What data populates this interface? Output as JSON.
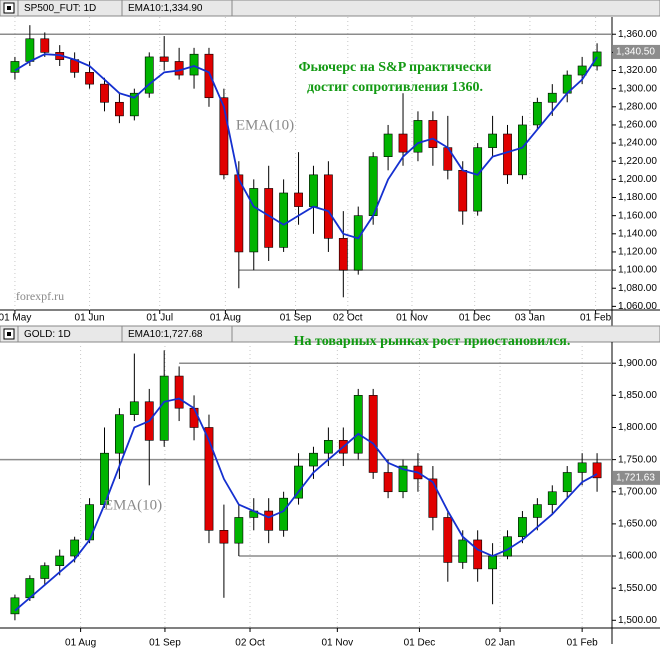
{
  "chart_data": [
    {
      "type": "candlestick",
      "title": "SP500_FUT: 1D",
      "subtitle": "EMA10:1,334.90",
      "annotations": [
        "Фьючерс на S&P практически",
        "достиг сопротивления 1360.",
        "EMA(10)",
        "forexpf.ru"
      ],
      "x": [
        1,
        2,
        3,
        4,
        5,
        6,
        7,
        8,
        9,
        10,
        11,
        12,
        13,
        14,
        15,
        16,
        17,
        18,
        19,
        20,
        21,
        22,
        23,
        24,
        25,
        26,
        27,
        28,
        29,
        30,
        31,
        32,
        33,
        34,
        35,
        36,
        37,
        38,
        39,
        40
      ],
      "open": [
        1318,
        1330,
        1355,
        1340,
        1332,
        1318,
        1305,
        1285,
        1270,
        1295,
        1335,
        1330,
        1315,
        1338,
        1290,
        1205,
        1120,
        1190,
        1125,
        1185,
        1170,
        1205,
        1135,
        1100,
        1160,
        1225,
        1250,
        1230,
        1265,
        1235,
        1210,
        1165,
        1235,
        1250,
        1205,
        1260,
        1285,
        1295,
        1315,
        1325
      ],
      "high": [
        1335,
        1370,
        1362,
        1348,
        1340,
        1330,
        1312,
        1295,
        1300,
        1340,
        1358,
        1345,
        1345,
        1345,
        1300,
        1220,
        1200,
        1215,
        1200,
        1230,
        1215,
        1220,
        1165,
        1170,
        1230,
        1260,
        1295,
        1275,
        1275,
        1270,
        1220,
        1240,
        1270,
        1260,
        1270,
        1290,
        1305,
        1320,
        1335,
        1350
      ],
      "low": [
        1310,
        1325,
        1335,
        1325,
        1312,
        1300,
        1275,
        1262,
        1265,
        1290,
        1320,
        1310,
        1300,
        1280,
        1200,
        1080,
        1100,
        1110,
        1120,
        1150,
        1140,
        1120,
        1070,
        1095,
        1150,
        1210,
        1215,
        1220,
        1215,
        1200,
        1150,
        1160,
        1225,
        1195,
        1200,
        1255,
        1270,
        1285,
        1305,
        1320
      ],
      "close": [
        1330,
        1355,
        1340,
        1332,
        1318,
        1305,
        1285,
        1270,
        1295,
        1335,
        1330,
        1315,
        1338,
        1290,
        1205,
        1120,
        1190,
        1125,
        1185,
        1170,
        1205,
        1135,
        1100,
        1160,
        1225,
        1250,
        1230,
        1265,
        1235,
        1210,
        1165,
        1235,
        1250,
        1205,
        1260,
        1285,
        1295,
        1315,
        1325,
        1340.5
      ],
      "ema": [
        1320,
        1330,
        1338,
        1337,
        1332,
        1325,
        1310,
        1295,
        1290,
        1305,
        1318,
        1320,
        1325,
        1318,
        1280,
        1200,
        1170,
        1160,
        1150,
        1160,
        1170,
        1165,
        1140,
        1135,
        1160,
        1200,
        1225,
        1240,
        1245,
        1235,
        1210,
        1205,
        1225,
        1230,
        1235,
        1255,
        1275,
        1295,
        1310,
        1334.9
      ],
      "up_color": "#00b400",
      "down_color": "#e00000",
      "ema_color": "#1530d0",
      "level_color": "#8c8c8c",
      "levels": [
        {
          "value": 1360,
          "x": [
            0,
            41
          ]
        },
        {
          "value": 1100,
          "x": [
            16,
            41
          ]
        }
      ],
      "last_price": {
        "value": 1340.5,
        "label": "1,340.50"
      },
      "xlim": [
        0,
        41
      ],
      "xticks": [
        {
          "value": 1.0,
          "label": "01 May"
        },
        {
          "value": 6.0,
          "label": "01 Jun"
        },
        {
          "value": 10.7,
          "label": "01 Jul"
        },
        {
          "value": 15.1,
          "label": "01 Aug"
        },
        {
          "value": 19.8,
          "label": "01 Sep"
        },
        {
          "value": 23.3,
          "label": "02 Oct"
        },
        {
          "value": 27.6,
          "label": "01 Nov"
        },
        {
          "value": 31.8,
          "label": "01 Dec"
        },
        {
          "value": 35.5,
          "label": "03 Jan"
        },
        {
          "value": 39.9,
          "label": "01 Feb"
        }
      ],
      "ylim": [
        1056,
        1379
      ],
      "yticks": [
        {
          "value": 1060,
          "label": "1,060.00"
        },
        {
          "value": 1080,
          "label": "1,080.00"
        },
        {
          "value": 1100,
          "label": "1,100.00"
        },
        {
          "value": 1120,
          "label": "1,120.00"
        },
        {
          "value": 1140,
          "label": "1,140.00"
        },
        {
          "value": 1160,
          "label": "1,160.00"
        },
        {
          "value": 1180,
          "label": "1,180.00"
        },
        {
          "value": 1200,
          "label": "1,200.00"
        },
        {
          "value": 1220,
          "label": "1,220.00"
        },
        {
          "value": 1240,
          "label": "1,240.00"
        },
        {
          "value": 1260,
          "label": "1,260.00"
        },
        {
          "value": 1280,
          "label": "1,280.00"
        },
        {
          "value": 1300,
          "label": "1,300.00"
        },
        {
          "value": 1320,
          "label": "1,320.00"
        },
        {
          "value": 1340,
          "label": "1,340.00"
        },
        {
          "value": 1360,
          "label": "1,360.00"
        }
      ],
      "grid": true
    },
    {
      "type": "candlestick",
      "title": "GOLD: 1D",
      "subtitle": "EMA10:1,727.68",
      "annotations": [
        "На товарных рынках рост приостановился.",
        "EMA(10)"
      ],
      "x": [
        1,
        2,
        3,
        4,
        5,
        6,
        7,
        8,
        9,
        10,
        11,
        12,
        13,
        14,
        15,
        16,
        17,
        18,
        19,
        20,
        21,
        22,
        23,
        24,
        25,
        26,
        27,
        28,
        29,
        30,
        31,
        32,
        33,
        34,
        35,
        36,
        37,
        38,
        39,
        40
      ],
      "open": [
        1510,
        1535,
        1565,
        1585,
        1600,
        1625,
        1680,
        1760,
        1820,
        1840,
        1780,
        1880,
        1830,
        1800,
        1640,
        1620,
        1660,
        1670,
        1640,
        1690,
        1740,
        1760,
        1780,
        1760,
        1850,
        1730,
        1700,
        1740,
        1720,
        1660,
        1590,
        1625,
        1580,
        1600,
        1630,
        1660,
        1680,
        1700,
        1730,
        1745
      ],
      "high": [
        1540,
        1570,
        1590,
        1610,
        1630,
        1690,
        1800,
        1830,
        1915,
        1860,
        1920,
        1895,
        1850,
        1820,
        1680,
        1680,
        1690,
        1690,
        1700,
        1760,
        1770,
        1800,
        1800,
        1860,
        1860,
        1750,
        1750,
        1760,
        1740,
        1670,
        1640,
        1640,
        1620,
        1640,
        1670,
        1690,
        1710,
        1740,
        1760,
        1760
      ],
      "low": [
        1500,
        1530,
        1555,
        1570,
        1590,
        1620,
        1675,
        1720,
        1810,
        1710,
        1770,
        1810,
        1780,
        1620,
        1535,
        1600,
        1640,
        1620,
        1630,
        1680,
        1720,
        1740,
        1740,
        1750,
        1720,
        1690,
        1690,
        1700,
        1640,
        1560,
        1580,
        1560,
        1525,
        1595,
        1620,
        1640,
        1665,
        1690,
        1710,
        1700
      ],
      "close": [
        1535,
        1565,
        1585,
        1600,
        1625,
        1680,
        1760,
        1820,
        1840,
        1780,
        1880,
        1830,
        1800,
        1640,
        1620,
        1660,
        1670,
        1640,
        1690,
        1740,
        1760,
        1780,
        1760,
        1850,
        1730,
        1700,
        1740,
        1720,
        1660,
        1590,
        1625,
        1580,
        1600,
        1630,
        1660,
        1680,
        1700,
        1730,
        1745,
        1721.63
      ],
      "ema": [
        1515,
        1535,
        1555,
        1575,
        1595,
        1625,
        1680,
        1740,
        1800,
        1810,
        1840,
        1845,
        1830,
        1780,
        1720,
        1680,
        1670,
        1660,
        1670,
        1700,
        1730,
        1750,
        1770,
        1790,
        1775,
        1745,
        1735,
        1730,
        1715,
        1670,
        1630,
        1610,
        1600,
        1610,
        1625,
        1645,
        1665,
        1690,
        1715,
        1727.68
      ],
      "up_color": "#00b400",
      "down_color": "#e00000",
      "ema_color": "#1530d0",
      "level_color": "#8c8c8c",
      "levels": [
        {
          "value": 1900,
          "x": [
            12,
            41
          ]
        },
        {
          "value": 1750,
          "x": [
            0,
            41
          ]
        },
        {
          "value": 1600,
          "x": [
            16,
            41
          ]
        }
      ],
      "last_price": {
        "value": 1721.63,
        "label": "1,721.63"
      },
      "xlim": [
        0,
        41
      ],
      "xticks": [
        {
          "value": 5.4,
          "label": "01 Aug"
        },
        {
          "value": 11.05,
          "label": "01 Sep"
        },
        {
          "value": 16.75,
          "label": "02 Oct"
        },
        {
          "value": 22.6,
          "label": "01 Nov"
        },
        {
          "value": 28.1,
          "label": "01 Dec"
        },
        {
          "value": 33.5,
          "label": "02 Jan"
        },
        {
          "value": 39.0,
          "label": "01 Feb"
        }
      ],
      "ylim": [
        1488,
        1933
      ],
      "yticks": [
        {
          "value": 1500,
          "label": "1,500.00"
        },
        {
          "value": 1550,
          "label": "1,550.00"
        },
        {
          "value": 1600,
          "label": "1,600.00"
        },
        {
          "value": 1650,
          "label": "1,650.00"
        },
        {
          "value": 1700,
          "label": "1,700.00"
        },
        {
          "value": 1750,
          "label": "1,750.00"
        },
        {
          "value": 1800,
          "label": "1,800.00"
        },
        {
          "value": 1850,
          "label": "1,850.00"
        },
        {
          "value": 1900,
          "label": "1,900.00"
        }
      ],
      "grid": true
    }
  ]
}
